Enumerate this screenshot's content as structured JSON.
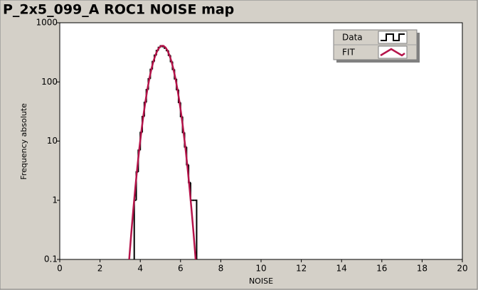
{
  "chart_data": {
    "type": "histogram",
    "title": "P_2x5_099_A ROC1 NOISE map",
    "x_label": "NOISE",
    "y_label": "Frequency absolute",
    "xlim": [
      0,
      20
    ],
    "ylim": [
      0.1,
      1000
    ],
    "log_y": true,
    "xticks": [
      0,
      2,
      4,
      6,
      8,
      10,
      12,
      14,
      16,
      18,
      20
    ],
    "yticks": [
      0.1,
      1,
      10,
      100,
      1000
    ],
    "legend": "upper right",
    "series": [
      {
        "name": "Data",
        "color": "#000000",
        "bins": [
          3.7,
          3.8,
          3.9,
          4.0,
          4.1,
          4.2,
          4.3,
          4.4,
          4.5,
          4.6,
          4.7,
          4.8,
          4.9,
          5.0,
          5.1,
          5.2,
          5.3,
          5.4,
          5.5,
          5.6,
          5.7,
          5.8,
          5.9,
          6.0,
          6.1,
          6.2,
          6.3,
          6.4,
          6.5,
          6.6,
          6.7,
          6.8
        ],
        "values": [
          1,
          3,
          7,
          14,
          26,
          45,
          74,
          113,
          163,
          221,
          282,
          339,
          383,
          407,
          395,
          372,
          339,
          282,
          221,
          163,
          113,
          74,
          45,
          26,
          14,
          8,
          4,
          2,
          1,
          1,
          1
        ]
      },
      {
        "name": "FIT",
        "color": "#b5144a",
        "x": [
          3.45,
          3.55,
          3.65,
          3.75,
          3.85,
          3.95,
          4.05,
          4.15,
          4.25,
          4.35,
          4.45,
          4.55,
          4.65,
          4.75,
          4.85,
          4.95,
          5.05,
          5.15,
          5.25,
          5.35,
          5.45,
          5.55,
          5.65,
          5.75,
          5.85,
          5.95,
          6.05,
          6.15,
          6.25,
          6.35,
          6.45,
          6.55,
          6.65,
          6.75
        ],
        "values": [
          0.1,
          0.27,
          0.67,
          1.58,
          3.5,
          7.3,
          14.2,
          26.2,
          45.3,
          73.8,
          113,
          163,
          221,
          282,
          339,
          383,
          407,
          407,
          383,
          339,
          282,
          221,
          163,
          113,
          73.8,
          45.3,
          26.2,
          14.2,
          7.3,
          3.5,
          1.58,
          0.67,
          0.27,
          0.1
        ]
      }
    ]
  }
}
